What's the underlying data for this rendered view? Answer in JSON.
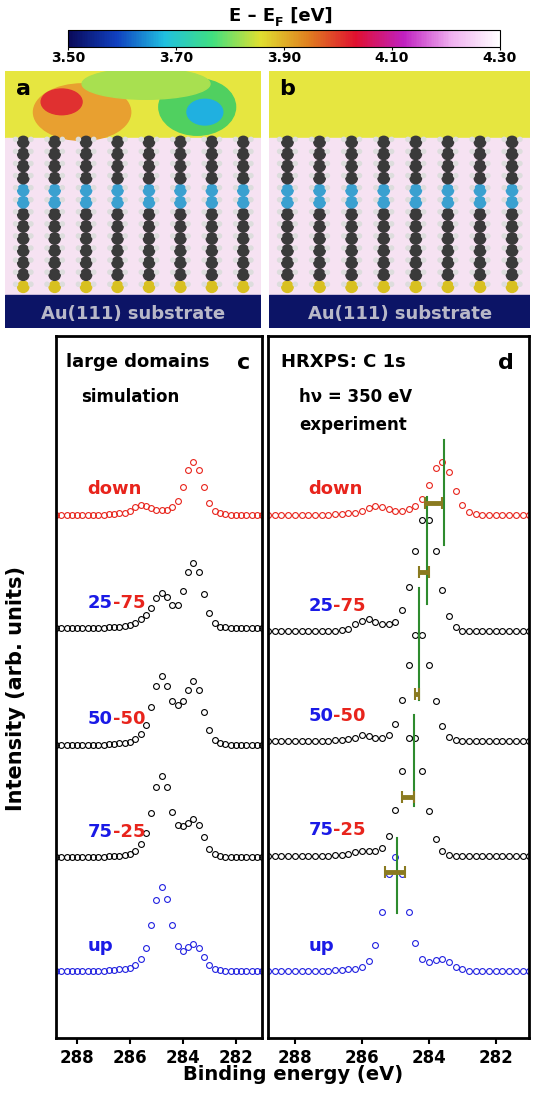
{
  "colorbar": {
    "label_parts": [
      {
        "text": "E – E"
      },
      {
        "text": "F",
        "subscript": true
      },
      {
        "text": " [eV]"
      }
    ],
    "range": [
      3.5,
      4.3
    ],
    "ticks": [
      {
        "value": 3.5,
        "label": "3.50"
      },
      {
        "value": 3.7,
        "label": "3.70"
      },
      {
        "value": 3.9,
        "label": "3.90"
      },
      {
        "value": 4.1,
        "label": "4.10"
      },
      {
        "value": 4.3,
        "label": "4.30"
      }
    ]
  },
  "images": [
    {
      "panel": "a",
      "label": "Au(111) substrate"
    },
    {
      "panel": "b",
      "label": "Au(111) substrate"
    }
  ],
  "xlabel": "Binding energy (eV)",
  "ylabel": "Intensity (arb. units)",
  "chart_data": [
    {
      "type": "scatter",
      "panel": "c",
      "title": "large domains",
      "annotations": [
        "simulation"
      ],
      "marker": "o",
      "line_style": "none",
      "tick_labels": "x",
      "xlim": [
        288.8,
        281.0
      ],
      "xticks": [
        288,
        286,
        284,
        282
      ],
      "ylim": [
        0,
        100
      ],
      "x": [
        289.0,
        288.8,
        288.6,
        288.4,
        288.2,
        288.0,
        287.8,
        287.6,
        287.4,
        287.2,
        287.0,
        286.8,
        286.6,
        286.4,
        286.2,
        286.0,
        285.8,
        285.6,
        285.4,
        285.2,
        285.0,
        284.8,
        284.6,
        284.4,
        284.2,
        284.0,
        283.8,
        283.6,
        283.4,
        283.2,
        283.0,
        282.8,
        282.6,
        282.4,
        282.2,
        282.0,
        281.8,
        281.6,
        281.4,
        281.2,
        281.0
      ],
      "series": [
        {
          "name": "down",
          "color": "#e8241c",
          "label_parts": [
            {
              "text": "down",
              "color": "#e8241c"
            }
          ],
          "values": [
            74.5,
            74.5,
            74.5,
            74.5,
            74.5,
            74.5,
            74.5,
            74.5,
            74.5,
            74.5,
            74.5,
            74.6,
            74.6,
            74.7,
            74.8,
            75.1,
            75.6,
            75.9,
            75.7,
            75.4,
            75.2,
            75.2,
            75.2,
            75.6,
            76.5,
            78.4,
            80.9,
            82.0,
            80.9,
            78.4,
            76.2,
            75.0,
            74.7,
            74.6,
            74.5,
            74.5,
            74.5,
            74.5,
            74.5,
            74.5,
            74.5
          ]
        },
        {
          "name": "25-75",
          "color": "#000000",
          "label_parts": [
            {
              "text": "25",
              "color": "#1a1ae6"
            },
            {
              "text": "-75",
              "color": "#e8241c"
            }
          ],
          "values": [
            58.4,
            58.4,
            58.4,
            58.4,
            58.4,
            58.4,
            58.4,
            58.4,
            58.4,
            58.4,
            58.4,
            58.5,
            58.5,
            58.6,
            58.7,
            58.8,
            59.1,
            59.6,
            60.2,
            61.3,
            62.7,
            63.4,
            62.8,
            61.7,
            61.7,
            63.6,
            66.4,
            67.7,
            66.3,
            63.2,
            60.5,
            59.1,
            58.6,
            58.5,
            58.4,
            58.4,
            58.4,
            58.4,
            58.4,
            58.4,
            58.4
          ]
        },
        {
          "name": "50-50",
          "color": "#000000",
          "label_parts": [
            {
              "text": "50",
              "color": "#1a1ae6"
            },
            {
              "text": "-50",
              "color": "#e8241c"
            }
          ],
          "values": [
            41.8,
            41.8,
            41.8,
            41.8,
            41.8,
            41.8,
            41.8,
            41.8,
            41.8,
            41.8,
            41.8,
            41.9,
            41.9,
            42.0,
            42.0,
            42.2,
            42.6,
            43.3,
            44.6,
            47.1,
            50.1,
            51.5,
            50.2,
            48.0,
            47.5,
            48.0,
            49.6,
            50.8,
            49.5,
            46.5,
            43.9,
            42.5,
            42.0,
            41.9,
            41.8,
            41.8,
            41.8,
            41.8,
            41.8,
            41.8,
            41.8
          ]
        },
        {
          "name": "75-25",
          "color": "#000000",
          "label_parts": [
            {
              "text": "75",
              "color": "#1a1ae6"
            },
            {
              "text": "-25",
              "color": "#e8241c"
            }
          ],
          "values": [
            25.8,
            25.8,
            25.8,
            25.8,
            25.8,
            25.8,
            25.8,
            25.8,
            25.8,
            25.8,
            25.8,
            25.9,
            25.9,
            26.0,
            26.1,
            26.3,
            26.7,
            27.7,
            29.2,
            32.1,
            35.7,
            37.4,
            35.8,
            32.2,
            30.3,
            30.2,
            30.6,
            31.2,
            30.4,
            28.6,
            27.0,
            26.2,
            25.9,
            25.8,
            25.8,
            25.8,
            25.8,
            25.8,
            25.8,
            25.8,
            25.8
          ]
        },
        {
          "name": "up",
          "color": "#2020e0",
          "label_parts": [
            {
              "text": "up",
              "color": "#1a1ae6"
            }
          ],
          "values": [
            9.6,
            9.6,
            9.6,
            9.6,
            9.6,
            9.6,
            9.6,
            9.6,
            9.6,
            9.6,
            9.6,
            9.7,
            9.7,
            9.8,
            9.9,
            10.0,
            10.4,
            11.3,
            12.9,
            16.1,
            19.7,
            21.5,
            19.8,
            16.1,
            13.2,
            12.5,
            13.0,
            13.4,
            12.8,
            11.6,
            10.5,
            9.9,
            9.7,
            9.6,
            9.6,
            9.6,
            9.6,
            9.6,
            9.6,
            9.6,
            9.6
          ]
        }
      ]
    },
    {
      "type": "scatter",
      "panel": "d",
      "title": "HRXPS: C 1s",
      "annotations": [
        "hν = 350 eV",
        "experiment"
      ],
      "marker": "o",
      "line_style": "none",
      "tick_labels": "x",
      "xlim": [
        288.8,
        281.0
      ],
      "xticks": [
        288,
        286,
        284,
        282
      ],
      "ylim": [
        0,
        100
      ],
      "x": [
        289.0,
        288.8,
        288.6,
        288.4,
        288.2,
        288.0,
        287.8,
        287.6,
        287.4,
        287.2,
        287.0,
        286.8,
        286.6,
        286.4,
        286.2,
        286.0,
        285.8,
        285.6,
        285.4,
        285.2,
        285.0,
        284.8,
        284.6,
        284.4,
        284.2,
        284.0,
        283.8,
        283.6,
        283.4,
        283.2,
        283.0,
        282.8,
        282.6,
        282.4,
        282.2,
        282.0,
        281.8,
        281.6,
        281.4,
        281.2,
        281.0
      ],
      "series": [
        {
          "name": "down",
          "color": "#e8241c",
          "label_parts": [
            {
              "text": "down",
              "color": "#e8241c"
            }
          ],
          "values": [
            74.5,
            74.5,
            74.5,
            74.5,
            74.5,
            74.5,
            74.5,
            74.5,
            74.5,
            74.5,
            74.5,
            74.6,
            74.6,
            74.7,
            74.8,
            75.0,
            75.5,
            75.8,
            75.6,
            75.3,
            75.1,
            75.1,
            75.3,
            75.8,
            76.8,
            78.7,
            81.1,
            82.0,
            80.6,
            77.9,
            75.9,
            74.9,
            74.6,
            74.5,
            74.5,
            74.5,
            74.5,
            74.5,
            74.5,
            74.5,
            74.5
          ]
        },
        {
          "name": "25-75",
          "color": "#000000",
          "label_parts": [
            {
              "text": "25",
              "color": "#1a1ae6"
            },
            {
              "text": "-75",
              "color": "#e8241c"
            }
          ],
          "values": [
            57.9,
            57.9,
            57.9,
            57.9,
            57.9,
            57.9,
            57.9,
            57.9,
            57.9,
            57.9,
            57.9,
            58.0,
            58.1,
            58.3,
            58.9,
            59.4,
            59.6,
            59.2,
            58.9,
            59.0,
            59.3,
            60.9,
            64.2,
            69.3,
            73.7,
            73.7,
            69.3,
            63.8,
            60.1,
            58.5,
            58.0,
            57.9,
            57.9,
            57.9,
            57.9,
            57.9,
            57.9,
            57.9,
            57.9,
            57.9,
            57.9
          ]
        },
        {
          "name": "50-50",
          "color": "#000000",
          "label_parts": [
            {
              "text": "50",
              "color": "#1a1ae6"
            },
            {
              "text": "-50",
              "color": "#e8241c"
            }
          ],
          "values": [
            42.3,
            42.3,
            42.3,
            42.3,
            42.3,
            42.3,
            42.3,
            42.3,
            42.3,
            42.3,
            42.3,
            42.4,
            42.4,
            42.6,
            42.8,
            43.1,
            43.0,
            42.8,
            42.8,
            43.2,
            44.7,
            48.2,
            53.1,
            57.4,
            57.4,
            53.1,
            48.0,
            44.4,
            42.9,
            42.4,
            42.3,
            42.3,
            42.3,
            42.3,
            42.3,
            42.3,
            42.3,
            42.3,
            42.3,
            42.3,
            42.3
          ]
        },
        {
          "name": "75-25",
          "color": "#000000",
          "label_parts": [
            {
              "text": "75",
              "color": "#1a1ae6"
            },
            {
              "text": "-25",
              "color": "#e8241c"
            }
          ],
          "values": [
            26.0,
            26.0,
            26.0,
            26.0,
            26.0,
            26.0,
            26.0,
            26.0,
            26.0,
            26.0,
            26.0,
            26.1,
            26.1,
            26.3,
            26.5,
            26.7,
            26.6,
            26.6,
            27.1,
            28.8,
            32.5,
            38.1,
            42.8,
            42.8,
            38.1,
            32.3,
            28.4,
            26.6,
            26.1,
            26.0,
            26.0,
            26.0,
            26.0,
            26.0,
            26.0,
            26.0,
            26.0,
            26.0,
            26.0,
            26.0,
            26.0
          ]
        },
        {
          "name": "up",
          "color": "#2020e0",
          "label_parts": [
            {
              "text": "up",
              "color": "#1a1ae6"
            }
          ],
          "values": [
            9.6,
            9.6,
            9.6,
            9.6,
            9.6,
            9.6,
            9.6,
            9.6,
            9.6,
            9.6,
            9.6,
            9.7,
            9.7,
            9.8,
            9.9,
            10.2,
            11.0,
            13.3,
            18.0,
            23.4,
            25.8,
            23.4,
            18.0,
            13.5,
            11.3,
            10.9,
            11.2,
            11.3,
            10.8,
            10.2,
            9.8,
            9.6,
            9.6,
            9.6,
            9.6,
            9.6,
            9.6,
            9.6,
            9.6,
            9.6,
            9.6
          ]
        }
      ],
      "peak_lines": {
        "color": "#2e8b2e",
        "lines": [
          {
            "x": 283.55,
            "y": [
              70.2,
              85.1
            ]
          },
          {
            "x": 284.05,
            "y": [
              61.8,
              77.0
            ]
          },
          {
            "x": 284.3,
            "y": [
              48.2,
              64.1
            ]
          },
          {
            "x": 284.45,
            "y": [
              33.0,
              46.0
            ]
          },
          {
            "x": 284.95,
            "y": [
              17.9,
              28.5
            ]
          }
        ]
      },
      "shift_bars": {
        "color": "#8a7a20",
        "bars": [
          {
            "x": [
              284.1,
              283.6
            ],
            "y": 76.2
          },
          {
            "x": [
              284.3,
              284.0
            ],
            "y": 66.4
          },
          {
            "x": [
              284.4,
              284.3
            ],
            "y": 49.0
          },
          {
            "x": [
              284.8,
              284.45
            ],
            "y": 34.3
          },
          {
            "x": [
              285.3,
              284.7
            ],
            "y": 23.7
          }
        ]
      }
    }
  ]
}
